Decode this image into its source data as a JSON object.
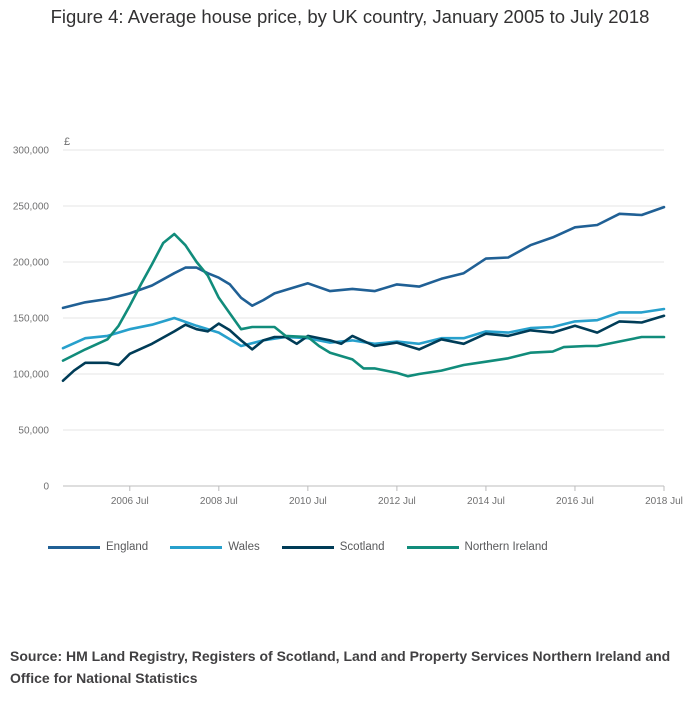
{
  "title": "Figure 4: Average house price, by UK country, January 2005 to July 2018",
  "source": "Source: HM Land Registry, Registers of Scotland, Land and Property Services Northern Ireland and Office for National Statistics",
  "chart_data": {
    "type": "line",
    "title": "Figure 4: Average house price, by UK country, January 2005 to July 2018",
    "ylabel": "£",
    "xlabel": "",
    "ylim": [
      0,
      300000
    ],
    "xlim": [
      2005.0,
      2018.5
    ],
    "x_unit": "decimal year",
    "yticks": [
      0,
      50000,
      100000,
      150000,
      200000,
      250000,
      300000
    ],
    "ytick_labels": [
      "0",
      "50,000",
      "100,000",
      "150,000",
      "200,000",
      "250,000",
      "300,000"
    ],
    "xticks": [
      2006.5,
      2008.5,
      2010.5,
      2012.5,
      2014.5,
      2016.5,
      2018.5
    ],
    "xtick_labels": [
      "2006 Jul",
      "2008 Jul",
      "2010 Jul",
      "2012 Jul",
      "2014 Jul",
      "2016 Jul",
      "2018 Jul"
    ],
    "grid": true,
    "legend_position": "bottom",
    "series": [
      {
        "name": "England",
        "color": "#206095",
        "points": [
          [
            2005.0,
            159000
          ],
          [
            2005.5,
            164000
          ],
          [
            2006.0,
            167000
          ],
          [
            2006.5,
            172000
          ],
          [
            2007.0,
            179000
          ],
          [
            2007.5,
            190000
          ],
          [
            2007.75,
            195000
          ],
          [
            2008.0,
            195000
          ],
          [
            2008.25,
            190000
          ],
          [
            2008.5,
            186000
          ],
          [
            2008.75,
            180000
          ],
          [
            2009.0,
            168000
          ],
          [
            2009.25,
            161000
          ],
          [
            2009.5,
            166000
          ],
          [
            2009.75,
            172000
          ],
          [
            2010.0,
            175000
          ],
          [
            2010.5,
            181000
          ],
          [
            2011.0,
            174000
          ],
          [
            2011.5,
            176000
          ],
          [
            2012.0,
            174000
          ],
          [
            2012.5,
            180000
          ],
          [
            2013.0,
            178000
          ],
          [
            2013.5,
            185000
          ],
          [
            2014.0,
            190000
          ],
          [
            2014.5,
            203000
          ],
          [
            2015.0,
            204000
          ],
          [
            2015.5,
            215000
          ],
          [
            2016.0,
            222000
          ],
          [
            2016.5,
            231000
          ],
          [
            2017.0,
            233000
          ],
          [
            2017.5,
            243000
          ],
          [
            2018.0,
            242000
          ],
          [
            2018.5,
            249000
          ]
        ]
      },
      {
        "name": "Wales",
        "color": "#27a0cc",
        "points": [
          [
            2005.0,
            123000
          ],
          [
            2005.5,
            132000
          ],
          [
            2006.0,
            134000
          ],
          [
            2006.5,
            140000
          ],
          [
            2007.0,
            144000
          ],
          [
            2007.5,
            150000
          ],
          [
            2008.0,
            143000
          ],
          [
            2008.5,
            137000
          ],
          [
            2009.0,
            125000
          ],
          [
            2009.5,
            130000
          ],
          [
            2010.0,
            133000
          ],
          [
            2010.5,
            132000
          ],
          [
            2011.0,
            128000
          ],
          [
            2011.5,
            130000
          ],
          [
            2012.0,
            127000
          ],
          [
            2012.5,
            129000
          ],
          [
            2013.0,
            127000
          ],
          [
            2013.5,
            132000
          ],
          [
            2014.0,
            132000
          ],
          [
            2014.5,
            138000
          ],
          [
            2015.0,
            137000
          ],
          [
            2015.5,
            141000
          ],
          [
            2016.0,
            142000
          ],
          [
            2016.5,
            147000
          ],
          [
            2017.0,
            148000
          ],
          [
            2017.5,
            155000
          ],
          [
            2018.0,
            155000
          ],
          [
            2018.5,
            158000
          ]
        ]
      },
      {
        "name": "Scotland",
        "color": "#003c57",
        "points": [
          [
            2005.0,
            94000
          ],
          [
            2005.25,
            103000
          ],
          [
            2005.5,
            110000
          ],
          [
            2006.0,
            110000
          ],
          [
            2006.25,
            108000
          ],
          [
            2006.5,
            118000
          ],
          [
            2007.0,
            127000
          ],
          [
            2007.5,
            138000
          ],
          [
            2007.75,
            144000
          ],
          [
            2008.0,
            140000
          ],
          [
            2008.25,
            138000
          ],
          [
            2008.5,
            145000
          ],
          [
            2008.75,
            139000
          ],
          [
            2009.0,
            130000
          ],
          [
            2009.25,
            122000
          ],
          [
            2009.5,
            130000
          ],
          [
            2009.75,
            133000
          ],
          [
            2010.0,
            133000
          ],
          [
            2010.25,
            127000
          ],
          [
            2010.5,
            134000
          ],
          [
            2011.0,
            130000
          ],
          [
            2011.25,
            127000
          ],
          [
            2011.5,
            134000
          ],
          [
            2012.0,
            125000
          ],
          [
            2012.5,
            128000
          ],
          [
            2013.0,
            122000
          ],
          [
            2013.5,
            131000
          ],
          [
            2014.0,
            127000
          ],
          [
            2014.5,
            136000
          ],
          [
            2015.0,
            134000
          ],
          [
            2015.5,
            139000
          ],
          [
            2016.0,
            137000
          ],
          [
            2016.5,
            143000
          ],
          [
            2017.0,
            137000
          ],
          [
            2017.5,
            147000
          ],
          [
            2018.0,
            146000
          ],
          [
            2018.5,
            152000
          ]
        ]
      },
      {
        "name": "Northern Ireland",
        "color": "#118c7b",
        "points": [
          [
            2005.0,
            112000
          ],
          [
            2005.5,
            122000
          ],
          [
            2006.0,
            131000
          ],
          [
            2006.25,
            143000
          ],
          [
            2006.5,
            161000
          ],
          [
            2006.75,
            180000
          ],
          [
            2007.0,
            198000
          ],
          [
            2007.25,
            217000
          ],
          [
            2007.5,
            225000
          ],
          [
            2007.75,
            215000
          ],
          [
            2008.0,
            200000
          ],
          [
            2008.25,
            188000
          ],
          [
            2008.5,
            168000
          ],
          [
            2008.75,
            154000
          ],
          [
            2009.0,
            140000
          ],
          [
            2009.25,
            142000
          ],
          [
            2009.75,
            142000
          ],
          [
            2010.0,
            134000
          ],
          [
            2010.5,
            133000
          ],
          [
            2010.75,
            125000
          ],
          [
            2011.0,
            119000
          ],
          [
            2011.5,
            113000
          ],
          [
            2011.75,
            105000
          ],
          [
            2012.0,
            105000
          ],
          [
            2012.5,
            101000
          ],
          [
            2012.75,
            98000
          ],
          [
            2013.0,
            100000
          ],
          [
            2013.5,
            103000
          ],
          [
            2014.0,
            108000
          ],
          [
            2014.5,
            111000
          ],
          [
            2015.0,
            114000
          ],
          [
            2015.5,
            119000
          ],
          [
            2016.0,
            120000
          ],
          [
            2016.25,
            124000
          ],
          [
            2016.75,
            125000
          ],
          [
            2017.0,
            125000
          ],
          [
            2017.5,
            129000
          ],
          [
            2018.0,
            133000
          ],
          [
            2018.5,
            133000
          ]
        ]
      }
    ]
  }
}
